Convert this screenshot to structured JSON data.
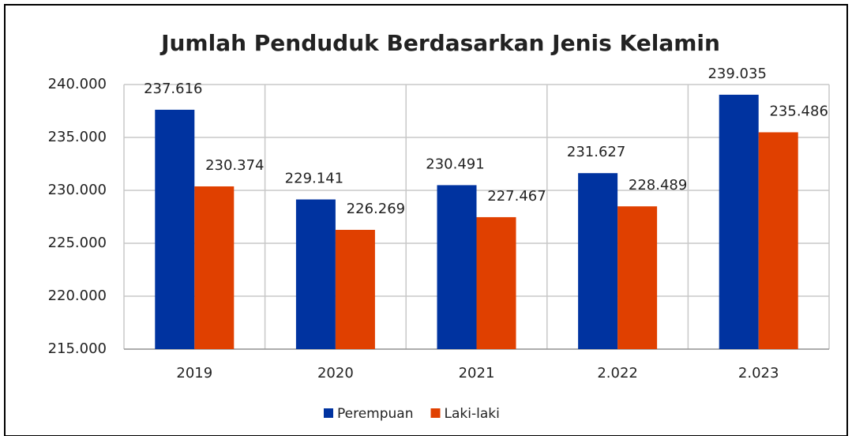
{
  "chart_data": {
    "type": "bar",
    "title": "Jumlah Penduduk Berdasarkan Jenis Kelamin",
    "categories": [
      "2019",
      "2020",
      "2021",
      "2.022",
      "2.023"
    ],
    "series": [
      {
        "name": "Perempuan",
        "color": "#0033a0",
        "values": [
          237616,
          229141,
          230491,
          231627,
          239035
        ],
        "value_labels": [
          "237.616",
          "229.141",
          "230.491",
          "231.627",
          "239.035"
        ]
      },
      {
        "name": "Laki-laki",
        "color": "#e04000",
        "values": [
          230374,
          226269,
          227467,
          228489,
          235486
        ],
        "value_labels": [
          "230.374",
          "226.269",
          "227.467",
          "228.489",
          "235.486"
        ]
      }
    ],
    "ylim": [
      215000,
      240000
    ],
    "yticks": [
      {
        "value": 215000,
        "label": "215.000"
      },
      {
        "value": 220000,
        "label": "220.000"
      },
      {
        "value": 225000,
        "label": "225.000"
      },
      {
        "value": 230000,
        "label": "230.000"
      },
      {
        "value": 235000,
        "label": "235.000"
      },
      {
        "value": 240000,
        "label": "240.000"
      }
    ],
    "grid": true,
    "legend": "bottom"
  }
}
